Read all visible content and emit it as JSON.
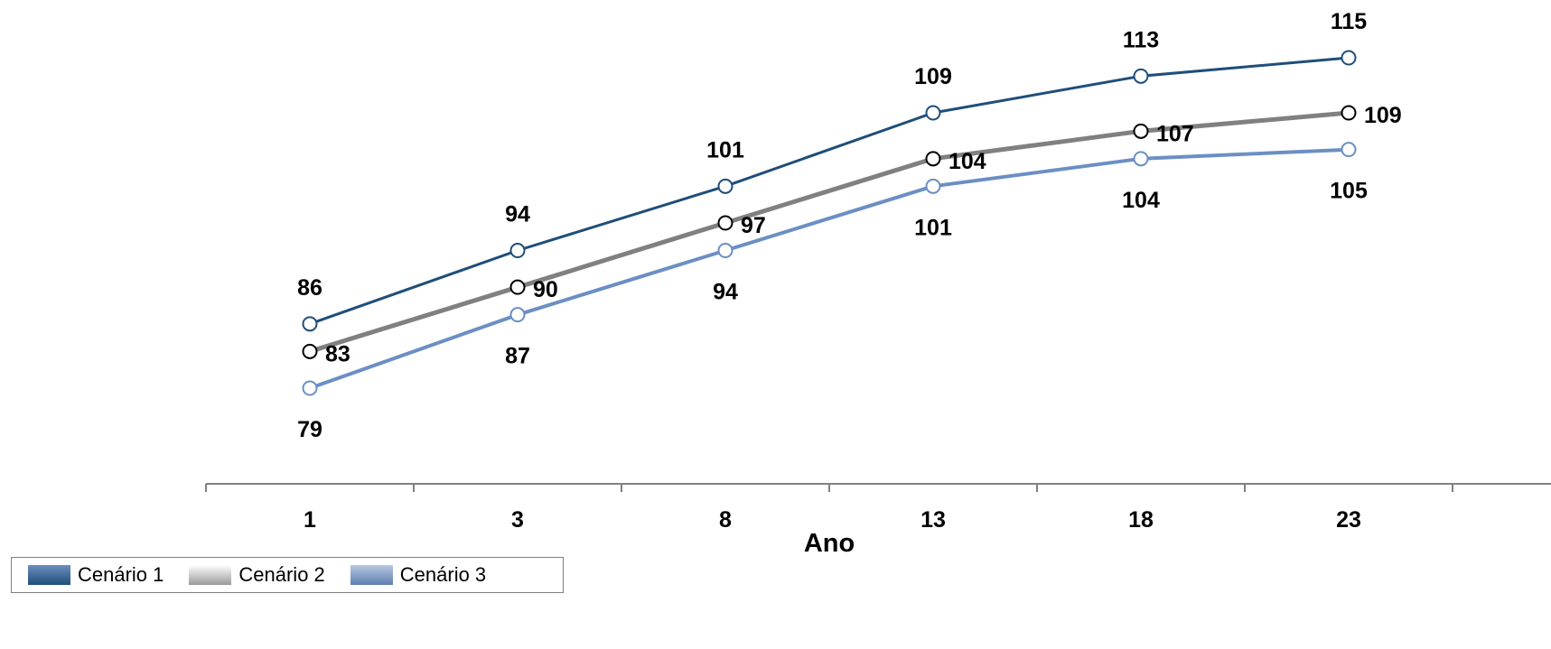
{
  "chart_data": {
    "type": "line",
    "xlabel": "Ano",
    "ylabel": "",
    "categories": [
      "1",
      "3",
      "8",
      "13",
      "18",
      "23"
    ],
    "ylim": [
      60,
      120
    ],
    "grid": false,
    "legend_position": "bottom-left",
    "series": [
      {
        "name": "Cenário 1",
        "values": [
          86,
          94,
          101,
          109,
          113,
          115
        ],
        "color": "#1f4e79",
        "label_side": "above"
      },
      {
        "name": "Cenário 2",
        "values": [
          83,
          90,
          97,
          104,
          107,
          109
        ],
        "color": "#808080",
        "label_side": "right"
      },
      {
        "name": "Cenário 3",
        "values": [
          79,
          87,
          94,
          101,
          104,
          105
        ],
        "color": "#6b8fc4",
        "label_side": "below"
      }
    ]
  },
  "legend": {
    "items": [
      {
        "label": "Cenário 1",
        "swatch": "linear-gradient(#6b8fbf, #1f4e79)"
      },
      {
        "label": "Cenário 2",
        "swatch": "linear-gradient(#ffffff, #9a9a9a)"
      },
      {
        "label": "Cenário 3",
        "swatch": "linear-gradient(#b8c8e0, #5f7fb0)"
      }
    ]
  }
}
